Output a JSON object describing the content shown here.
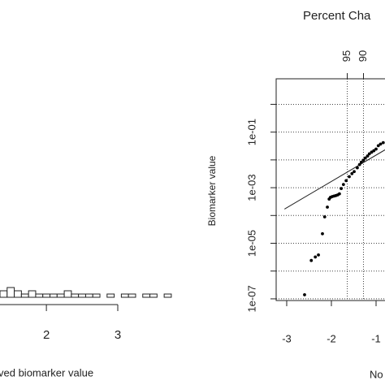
{
  "chart_data": [
    {
      "type": "histogram",
      "x_label": "ved biomarker value",
      "bins": [
        1.35,
        1.45,
        1.55,
        1.65,
        1.75,
        1.85,
        1.95,
        2.05,
        2.15,
        2.25,
        2.35,
        2.45,
        2.55,
        2.65,
        2.75,
        2.85,
        2.95,
        3.05,
        3.15,
        3.25,
        3.35,
        3.45,
        3.55,
        3.65,
        3.75
      ],
      "values": [
        2,
        3,
        2,
        1,
        2,
        1,
        1,
        1,
        1,
        2,
        1,
        1,
        1,
        1,
        0,
        1,
        0,
        1,
        1,
        0,
        1,
        1,
        0,
        1
      ],
      "xlim": [
        1.35,
        3
      ],
      "xticks": [
        2,
        3
      ],
      "ylim": [
        0,
        40
      ],
      "color": "#ffffff"
    },
    {
      "type": "scatter",
      "title": "Percent Cha",
      "x_label": "No",
      "y_label": "Biomarker value",
      "x": [
        -2.6,
        -2.45,
        -2.36,
        -2.29,
        -2.2,
        -2.15,
        -2.09,
        -2.05,
        -2.02,
        -1.98,
        -1.94,
        -1.9,
        -1.86,
        -1.82,
        -1.78,
        -1.73,
        -1.67,
        -1.6,
        -1.54,
        -1.49,
        -1.42,
        -1.37,
        -1.33,
        -1.28,
        -1.24,
        -1.19,
        -1.15,
        -1.1,
        -1.05,
        -1.0,
        -0.95,
        -0.9,
        -0.84
      ],
      "values": [
        1.4e-07,
        2.4e-06,
        3.2e-06,
        3.8e-06,
        2.2e-05,
        8.9e-05,
        0.0002,
        0.00039,
        0.00045,
        0.00048,
        0.0005,
        0.00052,
        0.00055,
        0.0006,
        0.00093,
        0.0013,
        0.0018,
        0.0025,
        0.0032,
        0.0038,
        0.0052,
        0.0068,
        0.0083,
        0.0098,
        0.0117,
        0.0138,
        0.0166,
        0.019,
        0.0214,
        0.0245,
        0.0324,
        0.0372,
        0.0417
      ],
      "color": "#000000",
      "fit_line": {
        "x": [
          -3.05,
          -0.8
        ],
        "values": [
          0.00017,
          0.023
        ]
      },
      "xlim": [
        -3.236,
        -0.8
      ],
      "xticks": [
        -3,
        -2,
        -1
      ],
      "ylim": [
        8.7e-08,
        8.3
      ],
      "ylog": true,
      "yticks": [
        {
          "value": 0.1,
          "label": "1e-01"
        },
        {
          "value": 0.001,
          "label": "1e-03"
        },
        {
          "value": 1e-05,
          "label": "1e-05"
        },
        {
          "value": 1e-07,
          "label": "1e-07"
        }
      ],
      "yminor": [
        1,
        0.01,
        0.0001,
        1e-06
      ],
      "top_ticks": [
        {
          "value": -1.645,
          "label": "95"
        },
        {
          "value": -1.282,
          "label": "90"
        }
      ],
      "grid": true
    }
  ]
}
